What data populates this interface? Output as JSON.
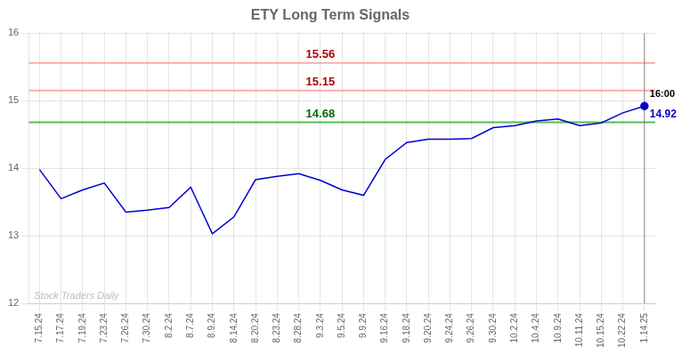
{
  "chart_data": {
    "type": "line",
    "title": "ETY Long Term Signals",
    "categories": [
      "7.15.24",
      "7.17.24",
      "7.19.24",
      "7.23.24",
      "7.26.24",
      "7.30.24",
      "8.2.24",
      "8.7.24",
      "8.9.24",
      "8.14.24",
      "8.20.24",
      "8.23.24",
      "8.28.24",
      "9.3.24",
      "9.5.24",
      "9.9.24",
      "9.16.24",
      "9.18.24",
      "9.20.24",
      "9.24.24",
      "9.26.24",
      "9.30.24",
      "10.2.24",
      "10.4.24",
      "10.9.24",
      "10.11.24",
      "10.15.24",
      "10.22.24",
      "1.14.25"
    ],
    "values": [
      13.98,
      13.55,
      13.68,
      13.78,
      13.35,
      13.38,
      13.42,
      13.72,
      13.03,
      13.28,
      13.83,
      13.88,
      13.92,
      13.82,
      13.68,
      13.6,
      14.13,
      14.38,
      14.43,
      14.43,
      14.44,
      14.6,
      14.63,
      14.7,
      14.73,
      14.63,
      14.67,
      14.82,
      14.92
    ],
    "color": "#0000cc",
    "ylim": [
      12,
      16
    ],
    "yticks": [
      12,
      13,
      14,
      15,
      16
    ],
    "grid": true,
    "hlines": [
      {
        "value": 15.56,
        "label": "15.56",
        "color": "#ffaaaa",
        "label_color": "#aa0000"
      },
      {
        "value": 15.15,
        "label": "15.15",
        "color": "#ffaaaa",
        "label_color": "#aa0000"
      },
      {
        "value": 14.68,
        "label": "14.68",
        "color": "#55bb55",
        "label_color": "#006600"
      }
    ],
    "last_point_labels": [
      "16:00",
      "14.92"
    ],
    "watermark": "Stock Traders Daily"
  }
}
